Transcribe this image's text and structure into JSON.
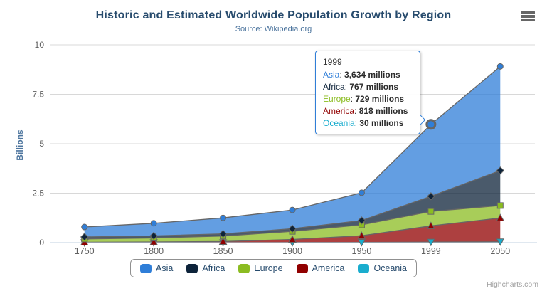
{
  "chart": {
    "title": "Historic and Estimated Worldwide Population Growth by Region",
    "subtitle": "Source: Wikipedia.org",
    "y_axis_title": "Billions",
    "credits": "Highcharts.com",
    "styles": {
      "title_color": "#274b6d",
      "subtitle_color": "#4d759e",
      "axis_label_color": "#606060",
      "axis_title_color": "#4d759e",
      "legend_text_color": "#274b6d",
      "grid_color": "#d8d8d8",
      "axis_line_color": "#c0d0e0",
      "series_line_color": "#666666",
      "fill_opacity": 0.75,
      "tooltip_border_color": "#2f7ed8",
      "credits_color": "#a0a0a0",
      "menu_icon_color": "#666666"
    }
  },
  "chart_data": {
    "type": "area",
    "stacking": "normal",
    "title": "Historic and Estimated Worldwide Population Growth by Region",
    "subtitle": "Source: Wikipedia.org",
    "xlabel": "",
    "ylabel": "Billions",
    "value_unit": "millions",
    "axis_unit": "billions",
    "categories": [
      "1750",
      "1800",
      "1850",
      "1900",
      "1950",
      "1999",
      "2050"
    ],
    "yticks": [
      0,
      2.5,
      5,
      7.5,
      10
    ],
    "ylim": [
      0,
      10
    ],
    "grid": true,
    "legend_position": "bottom",
    "series": [
      {
        "name": "Asia",
        "color": "#2f7ed8",
        "marker": "circle",
        "values": [
          502,
          635,
          809,
          947,
          1402,
          3634,
          5268
        ]
      },
      {
        "name": "Africa",
        "color": "#0d233a",
        "marker": "diamond",
        "values": [
          106,
          107,
          111,
          133,
          221,
          767,
          1766
        ]
      },
      {
        "name": "Europe",
        "color": "#8bbc21",
        "marker": "square",
        "values": [
          163,
          203,
          276,
          408,
          547,
          729,
          628
        ]
      },
      {
        "name": "America",
        "color": "#910000",
        "marker": "triangle",
        "values": [
          18,
          31,
          54,
          156,
          339,
          818,
          1201
        ]
      },
      {
        "name": "Oceania",
        "color": "#1aadce",
        "marker": "triangle-down",
        "values": [
          2,
          2,
          2,
          6,
          13,
          30,
          46
        ]
      }
    ]
  },
  "tooltip": {
    "visible": true,
    "header": "1999",
    "hover_series": "Asia",
    "hover_category_index": 5,
    "rows": [
      {
        "name": "Asia",
        "value": "3,634 millions"
      },
      {
        "name": "Africa",
        "value": "767 millions"
      },
      {
        "name": "Europe",
        "value": "729 millions"
      },
      {
        "name": "America",
        "value": "818 millions"
      },
      {
        "name": "Oceania",
        "value": "30 millions"
      }
    ]
  },
  "legend": {
    "items": [
      "Asia",
      "Africa",
      "Europe",
      "America",
      "Oceania"
    ]
  }
}
